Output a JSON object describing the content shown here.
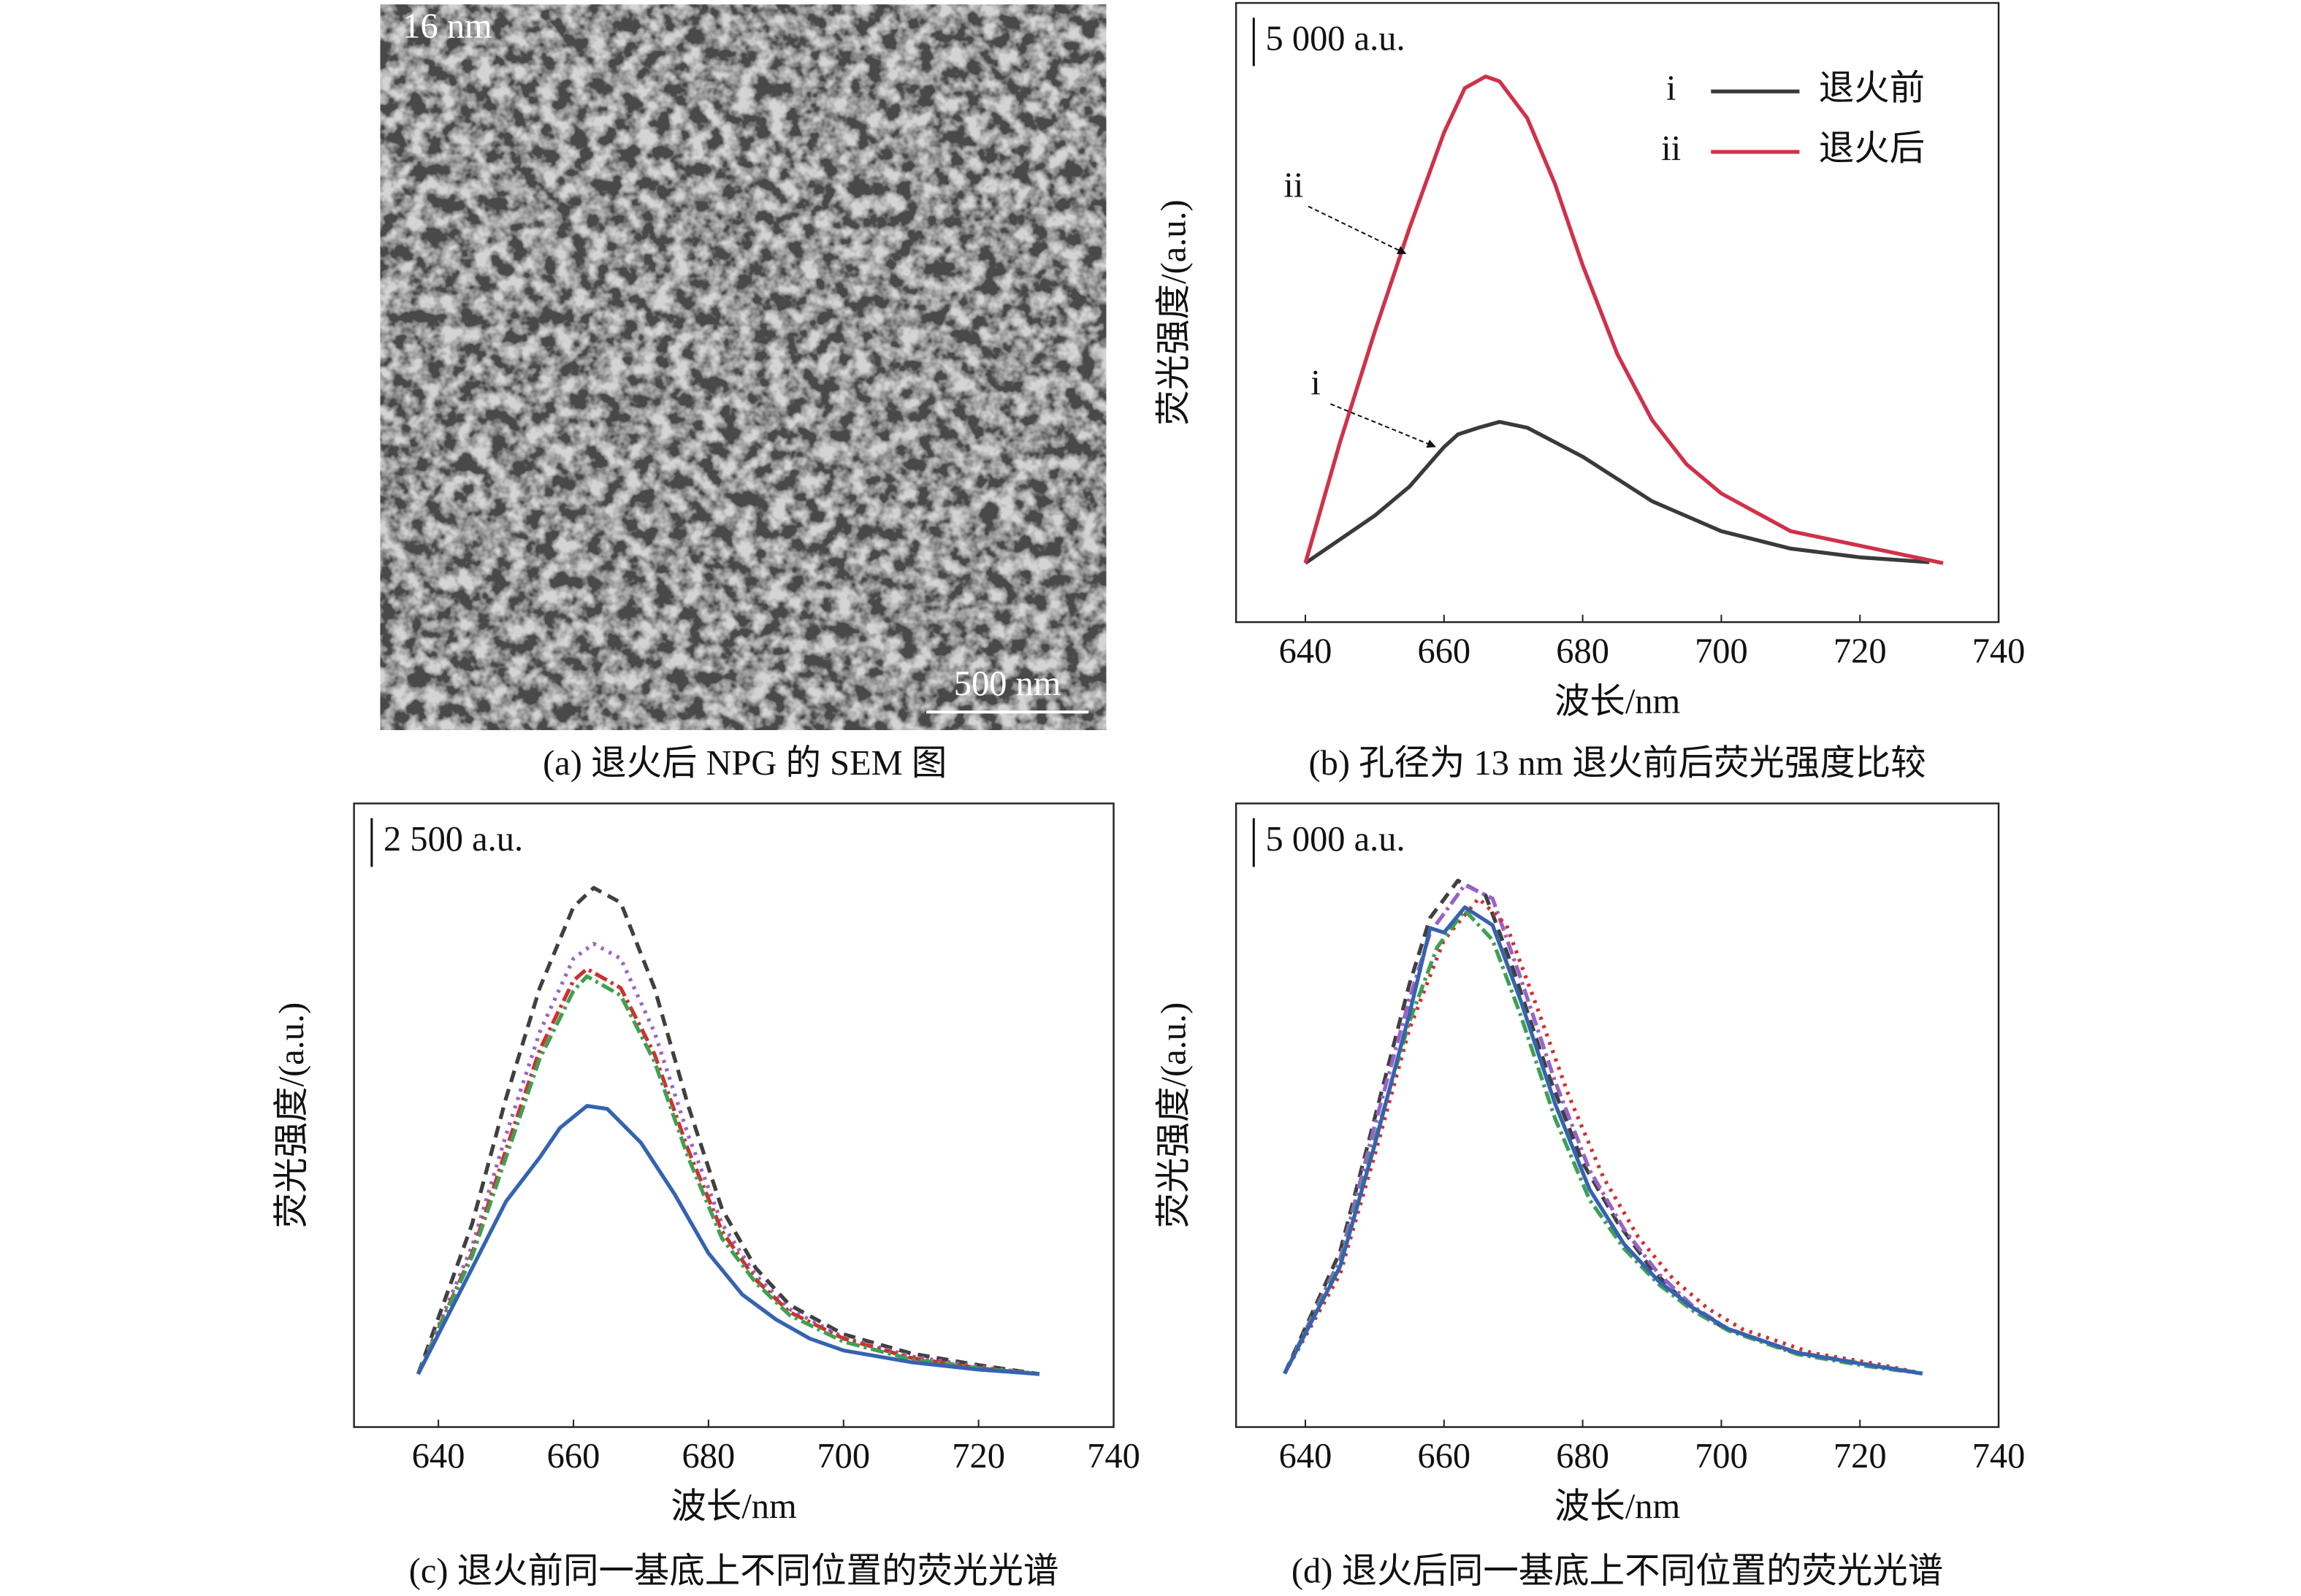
{
  "sem_image": {
    "label": "16 nm",
    "scale_bar": "500 nm",
    "caption": "(a) 退火后 NPG 的 SEM 图"
  },
  "chart_data": [
    {
      "type": "line",
      "caption": "(b) 孔径为 13 nm 退火前后荧光强度比较",
      "x_label": "波长/nm",
      "y_label": "荧光强度/(a.u.)",
      "scale_bar": {
        "value": 5000,
        "label": "5 000 a.u."
      },
      "xlim": [
        630,
        740
      ],
      "xticks": [
        640,
        660,
        680,
        700,
        720,
        740
      ],
      "ylim": [
        0,
        64000
      ],
      "legend": "upper right",
      "series": [
        {
          "tag": "i",
          "name": "退火前",
          "color": "#3a3a3a",
          "style": "solid",
          "x": [
            640,
            650,
            655,
            660,
            662,
            665,
            668,
            672,
            680,
            690,
            700,
            710,
            720,
            730
          ],
          "values": [
            6100,
            11000,
            14000,
            18100,
            19400,
            20100,
            20700,
            20100,
            17100,
            12500,
            9400,
            7600,
            6700,
            6200
          ]
        },
        {
          "tag": "ii",
          "name": "退火后",
          "color": "#d0314a",
          "style": "solid",
          "x": [
            640,
            645,
            650,
            655,
            660,
            663,
            666,
            668,
            672,
            676,
            680,
            685,
            690,
            695,
            700,
            710,
            720,
            730,
            732
          ],
          "values": [
            6100,
            18600,
            30000,
            40700,
            50600,
            55200,
            56400,
            55900,
            52100,
            45300,
            36900,
            27700,
            20900,
            16300,
            13300,
            9400,
            7900,
            6400,
            6100
          ]
        }
      ]
    },
    {
      "type": "line",
      "caption": "(c) 退火前同一基底上不同位置的荧光光谱",
      "x_label": "波长/nm",
      "y_label": "荧光强度/(a.u.)",
      "scale_bar": {
        "value": 2500,
        "label": "2 500 a.u."
      },
      "xlim": [
        627.5,
        740
      ],
      "xticks": [
        640,
        660,
        680,
        700,
        720,
        740
      ],
      "ylim": [
        0,
        32000
      ],
      "series": [
        {
          "color": "#404040",
          "style": "dashed",
          "x": [
            637,
            645,
            650,
            655,
            660,
            663,
            667,
            672,
            677,
            682,
            687,
            692,
            700,
            710,
            720,
            729
          ],
          "values": [
            2720,
            10430,
            16860,
            22530,
            26690,
            27670,
            26910,
            22530,
            16480,
            11190,
            8160,
            6270,
            4760,
            3780,
            3180,
            2720
          ]
        },
        {
          "color": "#9a62c8",
          "style": "dotted",
          "x": [
            637,
            645,
            650,
            655,
            660,
            663,
            667,
            672,
            677,
            682,
            687,
            692,
            700,
            710,
            720,
            729
          ],
          "values": [
            2720,
            9300,
            14970,
            20260,
            24040,
            24800,
            24040,
            20260,
            14970,
            10430,
            7790,
            6050,
            4610,
            3630,
            3100,
            2720
          ]
        },
        {
          "color": "#d03030",
          "style": "dashdot",
          "x": [
            637,
            645,
            650,
            655,
            660,
            662,
            667,
            672,
            677,
            682,
            687,
            692,
            700,
            710,
            720,
            729
          ],
          "values": [
            2720,
            8920,
            14210,
            19350,
            22910,
            23510,
            22530,
            19130,
            14210,
            10050,
            7560,
            5900,
            4540,
            3550,
            3020,
            2720
          ]
        },
        {
          "color": "#3fa052",
          "style": "dashdot",
          "x": [
            637,
            645,
            650,
            655,
            660,
            662,
            667,
            672,
            677,
            682,
            687,
            692,
            700,
            710,
            720,
            729
          ],
          "values": [
            2720,
            8770,
            13830,
            18900,
            22380,
            23130,
            22150,
            18750,
            13830,
            9680,
            7410,
            5750,
            4380,
            3480,
            3020,
            2720
          ]
        },
        {
          "color": "#3563b0",
          "style": "solid",
          "x": [
            637,
            645,
            650,
            655,
            658,
            662,
            665,
            670,
            675,
            680,
            685,
            690,
            695,
            700,
            710,
            720,
            729
          ],
          "values": [
            2720,
            8160,
            11570,
            13830,
            15350,
            16480,
            16330,
            14590,
            11940,
            8920,
            6800,
            5520,
            4540,
            3930,
            3330,
            2950,
            2720
          ]
        }
      ]
    },
    {
      "type": "line",
      "caption": "(d) 退火后同一基底上不同位置的荧光光谱",
      "x_label": "波长/nm",
      "y_label": "荧光强度/(a.u.)",
      "scale_bar": {
        "value": 5000,
        "label": "5 000 a.u."
      },
      "xlim": [
        630,
        740
      ],
      "xticks": [
        640,
        660,
        680,
        700,
        720,
        740
      ],
      "ylim": [
        0,
        64000
      ],
      "series": [
        {
          "color": "#404040",
          "style": "dashed",
          "x": [
            637,
            645,
            650,
            655,
            658,
            662,
            666,
            670,
            675,
            680,
            685,
            690,
            695,
            700,
            710,
            720,
            729
          ],
          "values": [
            5490,
            17980,
            31700,
            45420,
            52270,
            56080,
            54560,
            46940,
            36270,
            27130,
            21030,
            16150,
            12650,
            10360,
            7770,
            6550,
            5490
          ]
        },
        {
          "color": "#9a62c8",
          "style": "dashdot",
          "x": [
            637,
            645,
            650,
            655,
            658,
            663,
            667,
            671,
            676,
            681,
            686,
            691,
            696,
            701,
            711,
            721,
            729
          ],
          "values": [
            5490,
            17220,
            30940,
            43890,
            50750,
            55630,
            54250,
            46180,
            35510,
            26370,
            20270,
            15700,
            12340,
            10060,
            7620,
            6400,
            5490
          ]
        },
        {
          "color": "#d03030",
          "style": "dotted",
          "x": [
            637,
            645,
            650,
            655,
            660,
            665,
            669,
            673,
            678,
            683,
            688,
            693,
            698,
            703,
            713,
            723,
            729
          ],
          "values": [
            5490,
            15700,
            27890,
            40840,
            49990,
            54250,
            51510,
            43890,
            33990,
            25600,
            19510,
            15240,
            12190,
            10060,
            7620,
            6400,
            5490
          ]
        },
        {
          "color": "#3fa052",
          "style": "dashdot",
          "x": [
            637,
            645,
            650,
            655,
            659,
            663,
            667,
            671,
            676,
            681,
            686,
            691,
            696,
            701,
            711,
            721,
            729
          ],
          "values": [
            5490,
            16760,
            29410,
            41610,
            49230,
            53040,
            49990,
            42370,
            31700,
            23320,
            18290,
            14630,
            11890,
            9910,
            7470,
            6250,
            5490
          ]
        },
        {
          "color": "#3563b0",
          "style": "solid",
          "x": [
            637,
            645,
            650,
            655,
            658,
            660,
            663,
            667,
            671,
            676,
            681,
            686,
            691,
            696,
            701,
            711,
            721,
            729
          ],
          "values": [
            5490,
            16460,
            28960,
            42370,
            51210,
            50750,
            53340,
            51510,
            43890,
            33220,
            24380,
            18750,
            14940,
            12190,
            10060,
            7620,
            6400,
            5490
          ]
        }
      ]
    }
  ]
}
